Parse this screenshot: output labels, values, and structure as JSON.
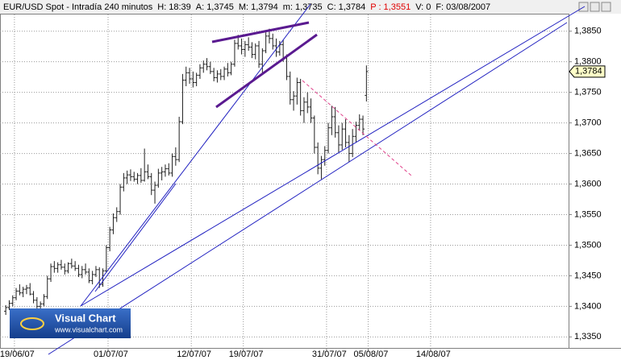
{
  "chart_data": {
    "type": "ohlc",
    "title": "EUR/USD Spot - Intradía 240 minutos",
    "header_fields": [
      {
        "label": "H:",
        "text": "18:39"
      },
      {
        "label": "A:",
        "text": "1,3745"
      },
      {
        "label": "M:",
        "text": "1,3794"
      },
      {
        "label": "m:",
        "text": "1,3735"
      },
      {
        "label": "C:",
        "text": "1,3784"
      },
      {
        "label": "P :",
        "text": "1,3551",
        "color": "#e00000"
      },
      {
        "label": "V:",
        "text": "0"
      },
      {
        "label": "F:",
        "text": "03/08/2007"
      }
    ],
    "color": "#202020",
    "grid": true,
    "ylim": [
      1.3332,
      1.3901
    ],
    "yticks": [
      {
        "value": 1.335,
        "label": "1,3350"
      },
      {
        "value": 1.34,
        "label": "1,3400"
      },
      {
        "value": 1.345,
        "label": "1,3450"
      },
      {
        "value": 1.35,
        "label": "1,3500"
      },
      {
        "value": 1.355,
        "label": "1,3550"
      },
      {
        "value": 1.36,
        "label": "1,3600"
      },
      {
        "value": 1.365,
        "label": "1,3650"
      },
      {
        "value": 1.37,
        "label": "1,3700"
      },
      {
        "value": 1.375,
        "label": "1,3750"
      },
      {
        "value": 1.38,
        "label": "1,3800"
      },
      {
        "value": 1.385,
        "label": "1,3850"
      }
    ],
    "xticks": [
      "19/06/07",
      "01/07/07",
      "12/07/07",
      "19/07/07",
      "31/07/07",
      "05/08/07",
      "14/08/07"
    ],
    "last_price": {
      "value": 1.3784,
      "label": "1,3784"
    },
    "logo": {
      "name": "Visual Chart",
      "url": "www.visualchart.com"
    },
    "x": [
      "18/06/07",
      "18/06/07",
      "18/06/07",
      "19/06/07",
      "19/06/07",
      "19/06/07",
      "20/06/07",
      "20/06/07",
      "20/06/07",
      "21/06/07",
      "21/06/07",
      "21/06/07",
      "22/06/07",
      "22/06/07",
      "22/06/07",
      "25/06/07",
      "25/06/07",
      "25/06/07",
      "26/06/07",
      "26/06/07",
      "26/06/07",
      "27/06/07",
      "27/06/07",
      "27/06/07",
      "28/06/07",
      "28/06/07",
      "28/06/07",
      "29/06/07",
      "29/06/07",
      "29/06/07",
      "02/07/07",
      "02/07/07",
      "02/07/07",
      "03/07/07",
      "03/07/07",
      "03/07/07",
      "04/07/07",
      "04/07/07",
      "04/07/07",
      "05/07/07",
      "05/07/07",
      "05/07/07",
      "06/07/07",
      "06/07/07",
      "06/07/07",
      "09/07/07",
      "09/07/07",
      "09/07/07",
      "10/07/07",
      "10/07/07",
      "10/07/07",
      "11/07/07",
      "11/07/07",
      "11/07/07",
      "12/07/07",
      "12/07/07",
      "12/07/07",
      "13/07/07",
      "13/07/07",
      "13/07/07",
      "16/07/07",
      "16/07/07",
      "16/07/07",
      "17/07/07",
      "17/07/07",
      "17/07/07",
      "18/07/07",
      "18/07/07",
      "18/07/07",
      "19/07/07",
      "19/07/07",
      "19/07/07",
      "20/07/07",
      "20/07/07",
      "20/07/07",
      "23/07/07",
      "23/07/07",
      "23/07/07",
      "24/07/07",
      "24/07/07",
      "24/07/07",
      "25/07/07",
      "25/07/07",
      "25/07/07",
      "26/07/07",
      "26/07/07",
      "26/07/07",
      "27/07/07",
      "27/07/07",
      "27/07/07",
      "30/07/07",
      "30/07/07",
      "30/07/07",
      "31/07/07",
      "31/07/07",
      "31/07/07",
      "01/08/07",
      "01/08/07",
      "01/08/07",
      "02/08/07",
      "02/08/07",
      "02/08/07",
      "03/08/07",
      "03/08/07",
      "03/08/07"
    ],
    "open": [
      1.3392,
      1.3398,
      1.3405,
      1.3414,
      1.3425,
      1.3422,
      1.3428,
      1.343,
      1.342,
      1.341,
      1.34,
      1.3404,
      1.3416,
      1.3445,
      1.3465,
      1.3462,
      1.3468,
      1.3464,
      1.3458,
      1.347,
      1.3466,
      1.3462,
      1.3452,
      1.346,
      1.3456,
      1.3442,
      1.3452,
      1.346,
      1.3436,
      1.3458,
      1.3496,
      1.3525,
      1.3545,
      1.3555,
      1.3595,
      1.361,
      1.3615,
      1.3612,
      1.3608,
      1.3614,
      1.3606,
      1.362,
      1.3612,
      1.359,
      1.3598,
      1.3618,
      1.362,
      1.3625,
      1.3618,
      1.3645,
      1.364,
      1.3702,
      1.377,
      1.3782,
      1.3772,
      1.3766,
      1.3778,
      1.379,
      1.3796,
      1.3792,
      1.3784,
      1.3774,
      1.378,
      1.3776,
      1.3788,
      1.3782,
      1.3796,
      1.383,
      1.3826,
      1.382,
      1.3828,
      1.3824,
      1.3812,
      1.3826,
      1.3796,
      1.3818,
      1.3842,
      1.3838,
      1.3826,
      1.3816,
      1.3828,
      1.3806,
      1.3776,
      1.3738,
      1.3744,
      1.3766,
      1.372,
      1.3734,
      1.3726,
      1.3708,
      1.366,
      1.3626,
      1.364,
      1.3655,
      1.3692,
      1.371,
      1.3684,
      1.3664,
      1.369,
      1.3668,
      1.365,
      1.3678,
      1.3696,
      1.3706,
      1.3745
    ],
    "high": [
      1.3402,
      1.341,
      1.3418,
      1.343,
      1.3436,
      1.3432,
      1.3435,
      1.3438,
      1.3425,
      1.3415,
      1.3408,
      1.342,
      1.345,
      1.347,
      1.3474,
      1.3472,
      1.3476,
      1.347,
      1.3472,
      1.3478,
      1.3474,
      1.3468,
      1.3466,
      1.347,
      1.3462,
      1.3458,
      1.3466,
      1.3464,
      1.3462,
      1.35,
      1.353,
      1.3552,
      1.3562,
      1.36,
      1.3618,
      1.3622,
      1.3624,
      1.362,
      1.3618,
      1.3626,
      1.3658,
      1.3632,
      1.3618,
      1.3604,
      1.3625,
      1.3628,
      1.3632,
      1.3634,
      1.365,
      1.366,
      1.371,
      1.378,
      1.3792,
      1.379,
      1.3784,
      1.3782,
      1.3796,
      1.3802,
      1.3806,
      1.38,
      1.379,
      1.3786,
      1.3788,
      1.3792,
      1.3798,
      1.38,
      1.3836,
      1.3844,
      1.3838,
      1.3834,
      1.384,
      1.3832,
      1.383,
      1.3834,
      1.3822,
      1.3848,
      1.3854,
      1.3846,
      1.3838,
      1.3834,
      1.3836,
      1.3812,
      1.3784,
      1.3752,
      1.3774,
      1.3772,
      1.3742,
      1.375,
      1.374,
      1.3712,
      1.3668,
      1.3646,
      1.3662,
      1.37,
      1.3728,
      1.3726,
      1.3696,
      1.37,
      1.3706,
      1.368,
      1.369,
      1.3702,
      1.3714,
      1.3712,
      1.3794
    ],
    "low": [
      1.3386,
      1.3394,
      1.34,
      1.341,
      1.3418,
      1.3415,
      1.342,
      1.3418,
      1.3405,
      1.3396,
      1.3392,
      1.34,
      1.3412,
      1.344,
      1.3455,
      1.3455,
      1.346,
      1.3452,
      1.3454,
      1.3462,
      1.3458,
      1.3448,
      1.3446,
      1.3452,
      1.3438,
      1.3436,
      1.3448,
      1.343,
      1.3432,
      1.3455,
      1.349,
      1.3518,
      1.3538,
      1.355,
      1.3588,
      1.36,
      1.3605,
      1.3604,
      1.36,
      1.3602,
      1.3604,
      1.3608,
      1.3582,
      1.3568,
      1.3594,
      1.3606,
      1.3612,
      1.3614,
      1.3612,
      1.363,
      1.3636,
      1.3698,
      1.376,
      1.3764,
      1.3758,
      1.376,
      1.3772,
      1.3782,
      1.3786,
      1.378,
      1.3768,
      1.3766,
      1.377,
      1.377,
      1.3776,
      1.3778,
      1.3792,
      1.382,
      1.3812,
      1.3808,
      1.3818,
      1.3806,
      1.3804,
      1.379,
      1.378,
      1.3814,
      1.383,
      1.382,
      1.3808,
      1.381,
      1.38,
      1.377,
      1.373,
      1.372,
      1.373,
      1.3712,
      1.37,
      1.3716,
      1.37,
      1.365,
      1.3616,
      1.3608,
      1.363,
      1.365,
      1.368,
      1.3676,
      1.3652,
      1.3656,
      1.366,
      1.3636,
      1.3644,
      1.3668,
      1.3688,
      1.368,
      1.3735
    ],
    "close": [
      1.3398,
      1.3405,
      1.3414,
      1.3425,
      1.3422,
      1.3428,
      1.343,
      1.342,
      1.341,
      1.34,
      1.3404,
      1.3416,
      1.3445,
      1.3465,
      1.3462,
      1.3468,
      1.3464,
      1.3458,
      1.347,
      1.3466,
      1.3462,
      1.3452,
      1.346,
      1.3456,
      1.3442,
      1.3452,
      1.346,
      1.3436,
      1.3458,
      1.3496,
      1.3525,
      1.3545,
      1.3555,
      1.3595,
      1.361,
      1.3615,
      1.3612,
      1.3608,
      1.3614,
      1.3606,
      1.362,
      1.3612,
      1.359,
      1.3598,
      1.3618,
      1.362,
      1.3625,
      1.3618,
      1.3645,
      1.364,
      1.3702,
      1.377,
      1.3782,
      1.3772,
      1.3766,
      1.3778,
      1.379,
      1.3796,
      1.3792,
      1.3784,
      1.3774,
      1.378,
      1.3776,
      1.3788,
      1.3782,
      1.3796,
      1.383,
      1.3826,
      1.382,
      1.3828,
      1.3824,
      1.3812,
      1.3826,
      1.3796,
      1.3818,
      1.3842,
      1.3838,
      1.3826,
      1.3816,
      1.3828,
      1.3806,
      1.3776,
      1.3738,
      1.3744,
      1.3766,
      1.372,
      1.3734,
      1.3726,
      1.3708,
      1.366,
      1.3626,
      1.364,
      1.3655,
      1.3692,
      1.371,
      1.3684,
      1.3664,
      1.369,
      1.3668,
      1.365,
      1.3678,
      1.3696,
      1.3706,
      1.369,
      1.3784
    ]
  }
}
